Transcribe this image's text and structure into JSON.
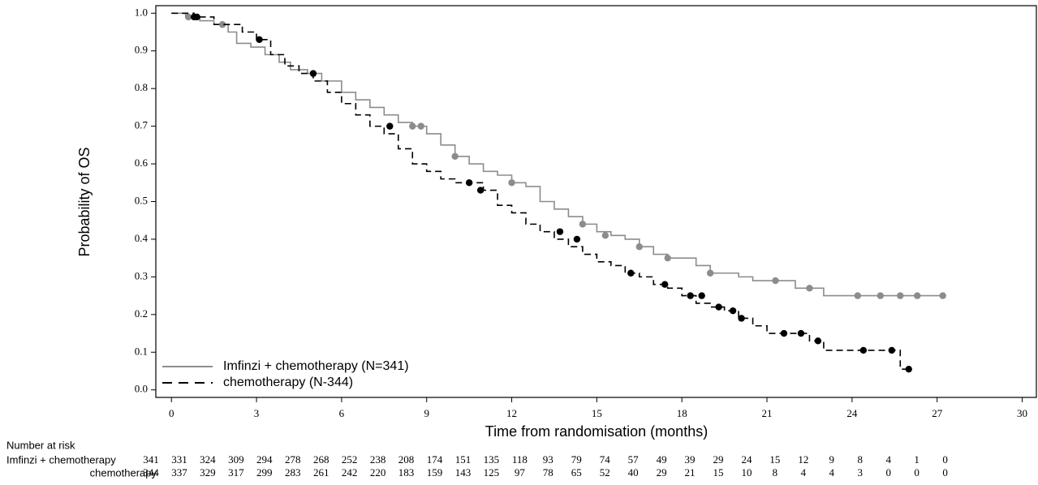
{
  "chart_data": {
    "type": "km",
    "xlabel": "Time from randomisation (months)",
    "ylabel": "Probability of OS",
    "xlim": [
      -0.55,
      30.5
    ],
    "ylim": [
      -0.02,
      1.02
    ],
    "xticks": [
      0,
      3,
      6,
      9,
      12,
      15,
      18,
      21,
      24,
      27,
      30
    ],
    "yticks": [
      {
        "value": 0,
        "label": "0.0"
      },
      0.1,
      0.2,
      0.3,
      0.4,
      0.5,
      0.6,
      0.7,
      0.8,
      0.9,
      {
        "value": 1,
        "label": "1.0"
      }
    ],
    "legend": "lower left",
    "series": [
      {
        "name": "Imfinzi + chemotherapy (N=341)",
        "color": "#8c8c8c",
        "dash": false,
        "x": [
          0,
          0.5,
          1,
          1.5,
          2,
          2.3,
          2.8,
          3.3,
          3.8,
          4.2,
          4.8,
          5.3,
          6,
          6.5,
          7,
          7.5,
          8,
          8.5,
          9,
          9.5,
          10,
          10.5,
          11,
          11.5,
          12,
          12.5,
          13,
          13.5,
          14,
          14.5,
          15,
          15.5,
          16,
          16.5,
          17,
          17.5,
          18,
          18.5,
          19,
          19.5,
          20,
          20.5,
          21,
          22,
          23,
          24,
          27.2
        ],
        "values": [
          1.0,
          0.99,
          0.98,
          0.97,
          0.95,
          0.92,
          0.91,
          0.89,
          0.87,
          0.85,
          0.84,
          0.82,
          0.79,
          0.77,
          0.75,
          0.73,
          0.71,
          0.7,
          0.68,
          0.65,
          0.62,
          0.6,
          0.58,
          0.57,
          0.55,
          0.54,
          0.5,
          0.48,
          0.46,
          0.44,
          0.42,
          0.41,
          0.4,
          0.38,
          0.36,
          0.35,
          0.35,
          0.33,
          0.31,
          0.31,
          0.3,
          0.29,
          0.29,
          0.27,
          0.25,
          0.25,
          0.25
        ],
        "censored": {
          "x": [
            0.6,
            1.8,
            8.5,
            8.8,
            10.0,
            12.0,
            14.5,
            15.3,
            16.5,
            17.5,
            19.0,
            21.3,
            22.5,
            24.2,
            25,
            25.7,
            26.3,
            27.2
          ],
          "values": [
            0.99,
            0.97,
            0.7,
            0.7,
            0.62,
            0.55,
            0.44,
            0.41,
            0.38,
            0.35,
            0.31,
            0.29,
            0.27,
            0.25,
            0.25,
            0.25,
            0.25,
            0.25
          ]
        }
      },
      {
        "name": "chemotherapy (N-344)",
        "color": "#000000",
        "dash": true,
        "x": [
          0,
          0.8,
          1.5,
          2.5,
          3,
          3.5,
          4,
          4.5,
          5,
          5.5,
          6,
          6.5,
          7,
          7.5,
          8,
          8.5,
          9,
          9.5,
          10,
          11,
          11.5,
          12,
          12.5,
          13,
          13.5,
          14,
          14.5,
          15,
          15.5,
          16,
          16.5,
          17,
          17.5,
          18,
          18.5,
          19,
          19.5,
          20,
          20.5,
          21,
          22,
          22.5,
          23,
          24,
          25.7,
          26
        ],
        "values": [
          1.0,
          0.99,
          0.97,
          0.95,
          0.93,
          0.89,
          0.86,
          0.84,
          0.82,
          0.79,
          0.76,
          0.73,
          0.7,
          0.68,
          0.64,
          0.6,
          0.58,
          0.56,
          0.55,
          0.53,
          0.49,
          0.47,
          0.44,
          0.42,
          0.4,
          0.38,
          0.36,
          0.34,
          0.33,
          0.31,
          0.3,
          0.28,
          0.27,
          0.25,
          0.23,
          0.22,
          0.21,
          0.19,
          0.17,
          0.15,
          0.15,
          0.13,
          0.105,
          0.105,
          0.055,
          0.055
        ],
        "censored": {
          "x": [
            0.8,
            0.9,
            3.1,
            5.0,
            7.7,
            10.5,
            10.9,
            13.7,
            14.3,
            16.2,
            17.4,
            18.3,
            18.7,
            19.3,
            19.8,
            20.1,
            21.6,
            22.2,
            22.8,
            24.4,
            25.4,
            26.0
          ],
          "values": [
            0.99,
            0.99,
            0.93,
            0.84,
            0.7,
            0.55,
            0.53,
            0.42,
            0.4,
            0.31,
            0.28,
            0.25,
            0.25,
            0.22,
            0.21,
            0.19,
            0.15,
            0.15,
            0.13,
            0.105,
            0.105,
            0.055
          ]
        }
      }
    ]
  },
  "risk_table": {
    "title": "Number at risk",
    "rows": [
      {
        "label": "Imfinzi + chemotherapy",
        "values": [
          341,
          331,
          324,
          309,
          294,
          278,
          268,
          252,
          238,
          208,
          174,
          151,
          135,
          118,
          93,
          79,
          74,
          57,
          49,
          39,
          29,
          24,
          15,
          12,
          9,
          8,
          4,
          1,
          0
        ]
      },
      {
        "label": "chemotherapy",
        "values": [
          344,
          337,
          329,
          317,
          299,
          283,
          261,
          242,
          220,
          183,
          159,
          143,
          125,
          97,
          78,
          65,
          52,
          40,
          29,
          21,
          15,
          10,
          8,
          4,
          4,
          3,
          0,
          0,
          0
        ]
      }
    ]
  }
}
